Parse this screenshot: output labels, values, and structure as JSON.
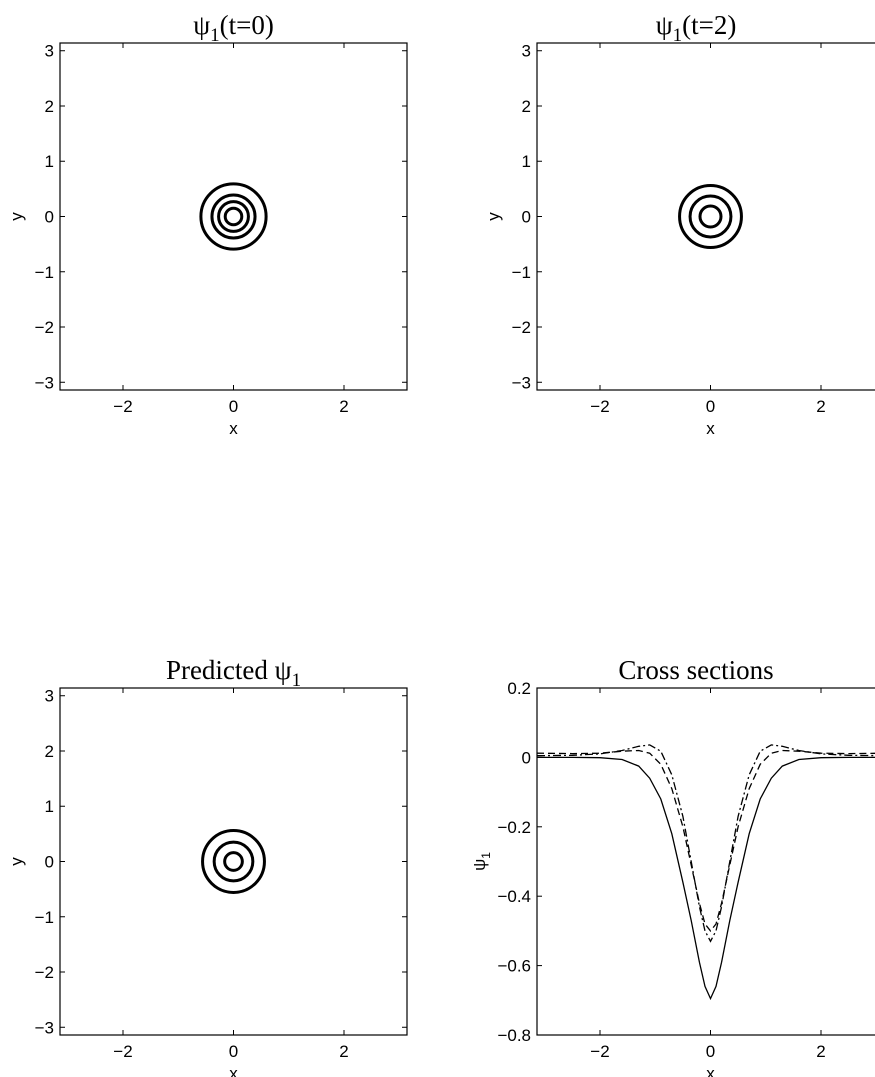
{
  "chart_data": [
    {
      "type": "contour",
      "title": {
        "main": "ψ",
        "sub": "1",
        "suffix": "(t=0)"
      },
      "xlabel": "x",
      "ylabel": "y",
      "xlim": [
        -3.14,
        3.14
      ],
      "ylim": [
        -3.14,
        3.14
      ],
      "xticks": [
        -2,
        0,
        2
      ],
      "yticks": [
        -3,
        -2,
        -1,
        0,
        1,
        2,
        3
      ],
      "tick_labels_x": [
        "−2",
        "0",
        "2"
      ],
      "tick_labels_y": [
        "−3",
        "−2",
        "−1",
        "0",
        "1",
        "2",
        "3"
      ],
      "contours": [
        {
          "cx": 0,
          "cy": 0,
          "r": 0.15
        },
        {
          "cx": 0,
          "cy": 0,
          "r": 0.27
        },
        {
          "cx": 0,
          "cy": 0,
          "r": 0.39
        },
        {
          "cx": 0,
          "cy": 0,
          "r": 0.59
        }
      ]
    },
    {
      "type": "contour",
      "title": {
        "main": "ψ",
        "sub": "1",
        "suffix": "(t=2)"
      },
      "xlabel": "x",
      "ylabel": "y",
      "xlim": [
        -3.14,
        3.14
      ],
      "ylim": [
        -3.14,
        3.14
      ],
      "xticks": [
        -2,
        0,
        2
      ],
      "yticks": [
        -3,
        -2,
        -1,
        0,
        1,
        2,
        3
      ],
      "tick_labels_x": [
        "−2",
        "0",
        "2"
      ],
      "tick_labels_y": [
        "−3",
        "−2",
        "−1",
        "0",
        "1",
        "2",
        "3"
      ],
      "contours": [
        {
          "cx": 0,
          "cy": 0,
          "r": 0.19
        },
        {
          "cx": 0,
          "cy": 0,
          "r": 0.37
        },
        {
          "cx": 0,
          "cy": 0,
          "r": 0.56
        }
      ]
    },
    {
      "type": "contour",
      "title": {
        "main": "Predicted ψ",
        "sub": "1",
        "suffix": ""
      },
      "xlabel": "x",
      "ylabel": "y",
      "xlim": [
        -3.14,
        3.14
      ],
      "ylim": [
        -3.14,
        3.14
      ],
      "xticks": [
        -2,
        0,
        2
      ],
      "yticks": [
        -3,
        -2,
        -1,
        0,
        1,
        2,
        3
      ],
      "tick_labels_x": [
        "−2",
        "0",
        "2"
      ],
      "tick_labels_y": [
        "−3",
        "−2",
        "−1",
        "0",
        "1",
        "2",
        "3"
      ],
      "contours": [
        {
          "cx": 0,
          "cy": 0,
          "r": 0.16
        },
        {
          "cx": 0,
          "cy": 0,
          "r": 0.35
        },
        {
          "cx": 0,
          "cy": 0,
          "r": 0.56
        }
      ]
    },
    {
      "type": "line",
      "title": {
        "main": "Cross sections",
        "sub": "",
        "suffix": ""
      },
      "xlabel": "x",
      "ylabel": {
        "main": "ψ",
        "sub": "1"
      },
      "xlim": [
        -3.14,
        3.14
      ],
      "ylim": [
        -0.8,
        0.2
      ],
      "xticks": [
        -2,
        0,
        2
      ],
      "yticks": [
        -0.8,
        -0.6,
        -0.4,
        -0.2,
        0,
        0.2
      ],
      "tick_labels_x": [
        "−2",
        "0",
        "2"
      ],
      "tick_labels_y": [
        "−0.8",
        "−0.6",
        "−0.4",
        "−0.2",
        "0",
        "0.2"
      ],
      "series": [
        {
          "style": "solid",
          "x": [
            -3.14,
            -2.5,
            -2.0,
            -1.6,
            -1.3,
            -1.1,
            -0.9,
            -0.7,
            -0.5,
            -0.35,
            -0.2,
            -0.1,
            0,
            0.1,
            0.2,
            0.35,
            0.5,
            0.7,
            0.9,
            1.1,
            1.3,
            1.6,
            2.0,
            2.5,
            3.14
          ],
          "y": [
            0,
            0,
            -0.001,
            -0.006,
            -0.025,
            -0.06,
            -0.12,
            -0.22,
            -0.36,
            -0.47,
            -0.59,
            -0.66,
            -0.695,
            -0.66,
            -0.59,
            -0.47,
            -0.36,
            -0.22,
            -0.12,
            -0.06,
            -0.025,
            -0.006,
            -0.001,
            0,
            0
          ]
        },
        {
          "style": "dashed",
          "x": [
            -3.14,
            -2.5,
            -2.0,
            -1.6,
            -1.3,
            -1.1,
            -0.9,
            -0.7,
            -0.5,
            -0.35,
            -0.2,
            -0.1,
            0,
            0.1,
            0.2,
            0.35,
            0.5,
            0.7,
            0.9,
            1.1,
            1.3,
            1.6,
            2.0,
            2.5,
            3.14
          ],
          "y": [
            0.012,
            0.011,
            0.012,
            0.018,
            0.02,
            0.012,
            -0.02,
            -0.09,
            -0.2,
            -0.31,
            -0.42,
            -0.48,
            -0.5,
            -0.48,
            -0.42,
            -0.31,
            -0.2,
            -0.09,
            -0.02,
            0.012,
            0.02,
            0.018,
            0.012,
            0.011,
            0.012
          ]
        },
        {
          "style": "dashdot",
          "x": [
            -3.14,
            -2.5,
            -2.0,
            -1.6,
            -1.3,
            -1.1,
            -0.9,
            -0.7,
            -0.5,
            -0.35,
            -0.2,
            -0.1,
            0,
            0.1,
            0.2,
            0.35,
            0.5,
            0.7,
            0.9,
            1.1,
            1.3,
            1.6,
            2.0,
            2.5,
            3.14
          ],
          "y": [
            0.005,
            0.006,
            0.01,
            0.02,
            0.032,
            0.036,
            0.018,
            -0.05,
            -0.17,
            -0.3,
            -0.43,
            -0.5,
            -0.53,
            -0.5,
            -0.43,
            -0.3,
            -0.17,
            -0.05,
            0.018,
            0.036,
            0.032,
            0.02,
            0.01,
            0.006,
            0.005
          ]
        }
      ]
    }
  ]
}
